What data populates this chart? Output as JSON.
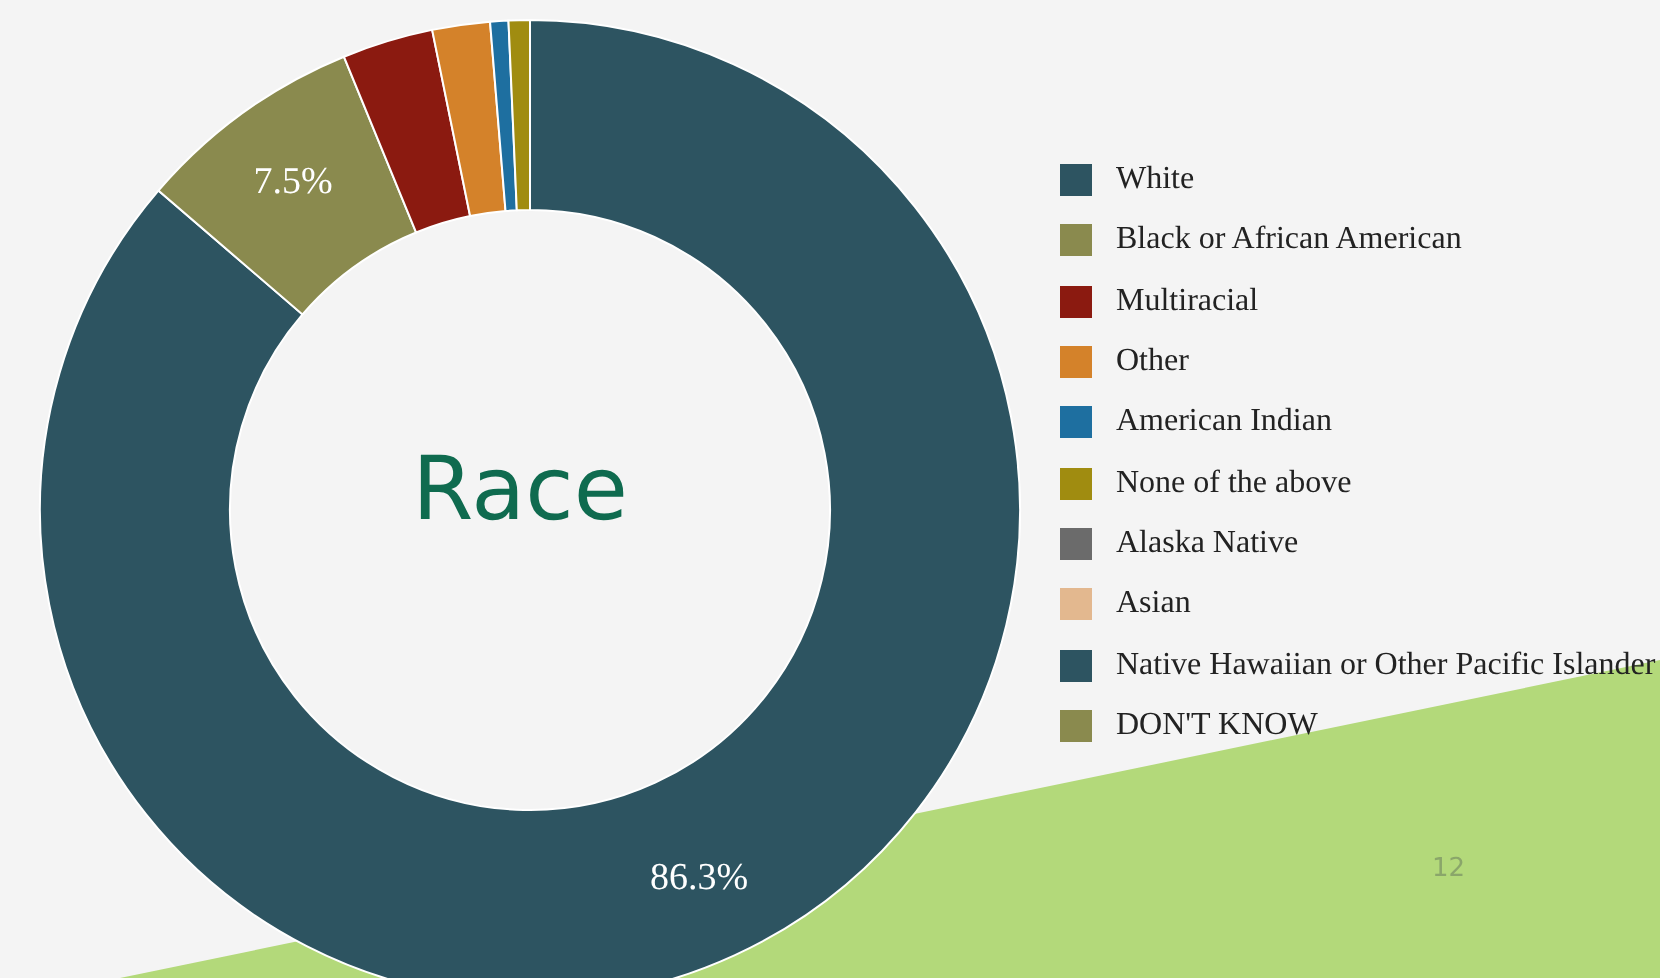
{
  "chart_data": {
    "type": "donut",
    "title": "Race",
    "categories": [
      "White",
      "Black or African American",
      "Multiracial",
      "Other",
      "American Indian",
      "None of the above",
      "Alaska Native",
      "Asian",
      "Native Hawaiian or Other Pacific Islander",
      "DON'T KNOW"
    ],
    "values": [
      86.3,
      7.5,
      3.0,
      1.9,
      0.6,
      0.7,
      0,
      0,
      0,
      0
    ],
    "colors": [
      "#2d5461",
      "#8a8a4e",
      "#8b1a10",
      "#d4822a",
      "#1e6fa0",
      "#a08c10",
      "#6b6b6b",
      "#e3b88f",
      "#2d5461",
      "#8a8a4e"
    ],
    "value_labels": [
      "86.3%",
      "7.5%",
      null,
      null,
      null,
      null,
      null,
      null,
      null,
      null
    ],
    "legend": "right",
    "annotations": [
      "12"
    ]
  }
}
